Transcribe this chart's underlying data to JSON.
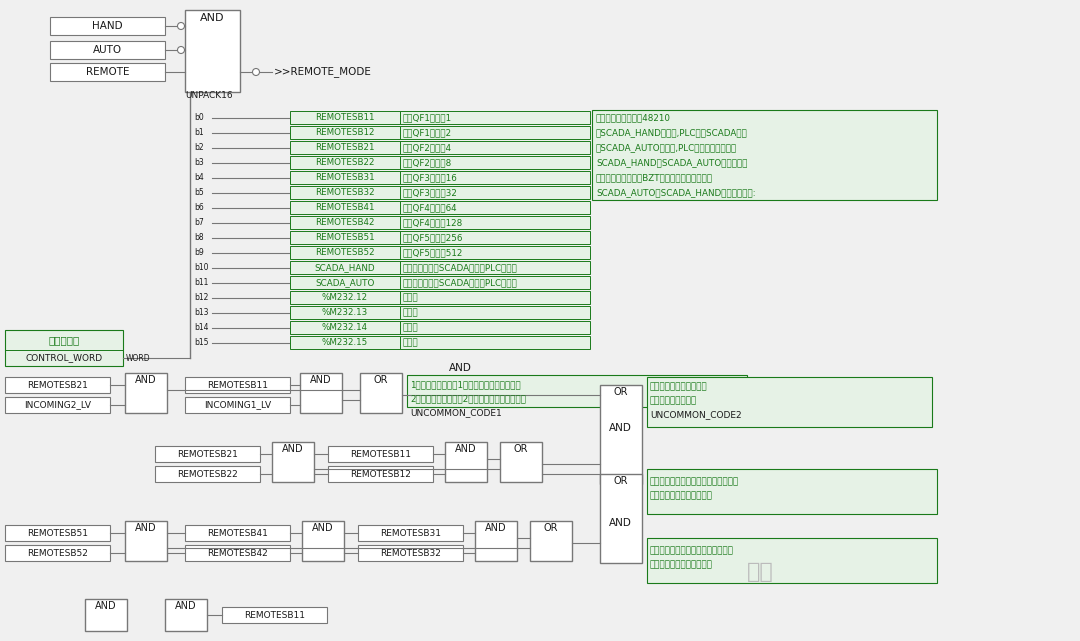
{
  "bg_color": "#f0f0f0",
  "line_color": "#777777",
  "black": "#1a1a1a",
  "green_color": "#1a7a1a",
  "green_bg": "#e6f2e6",
  "hand_auto_remote": [
    "HAND",
    "AUTO",
    "REMOTE"
  ],
  "unpack_rows": [
    [
      "b0",
      "REMOTESB11",
      "遥控QF1闭合：1"
    ],
    [
      "b1",
      "REMOTESB12",
      "遥控QF1打开：2"
    ],
    [
      "b2",
      "REMOTESB21",
      "遥控QF2闭合：4"
    ],
    [
      "b3",
      "REMOTESB22",
      "遥控QF2打开：8"
    ],
    [
      "b4",
      "REMOTESB31",
      "遥控QF3闭合：16"
    ],
    [
      "b5",
      "REMOTESB32",
      "遥控QF3打开：32"
    ],
    [
      "b6",
      "REMOTESB41",
      "遥控QF4闭合：64"
    ],
    [
      "b7",
      "REMOTESB42",
      "遥控QF4打开：128"
    ],
    [
      "b8",
      "REMOTESB51",
      "遥控QF5闭合：256"
    ],
    [
      "b9",
      "REMOTESB52",
      "遥控QF5打开：512"
    ],
    [
      "b10",
      "SCADA_HAND",
      "在遥控方式下由SCADA设置为PLC手动模"
    ],
    [
      "b11",
      "SCADA_AUTO",
      "在遥控方式下由SCADA设置为PLC自动模"
    ],
    [
      "b12",
      "%M232.12",
      "无效位"
    ],
    [
      "b13",
      "%M232.13",
      "无效位"
    ],
    [
      "b14",
      "%M232.14",
      "无效位"
    ],
    [
      "b15",
      "%M232.15",
      "无效位"
    ]
  ],
  "comment_lines": [
    "遥控命令字的地址：48210",
    "当SCADA_HAND有效时,PLC执行SCADA的遥",
    "当SCADA_AUTO有效时,PLC执行本地备自投模",
    "SCADA_HAND和SCADA_AUTO为互斥逻辑",
    "当遥控命令执行后，BZT程序将对遥控命令字清",
    "SCADA_AUTO和SCADA_HAND的印象保存在:"
  ],
  "row1_comment": [
    "1号进线无电压时合1号进线断路器的错误信息",
    "2号进线无申压时合号2号进线断路器的错误信息"
  ],
  "row2_comment": [
    "同时对断路器进行合闸和",
    "分闸操作的错误信息"
  ],
  "row3_comment1": [
    "假三级负荷总开关在不能闭合的系统状",
    "下进行闭合操作的错误信息"
  ],
  "row3_comment2": [
    "假三级负荷总开关在不能打开的系统",
    "下进行闭合操作的错误信息"
  ]
}
